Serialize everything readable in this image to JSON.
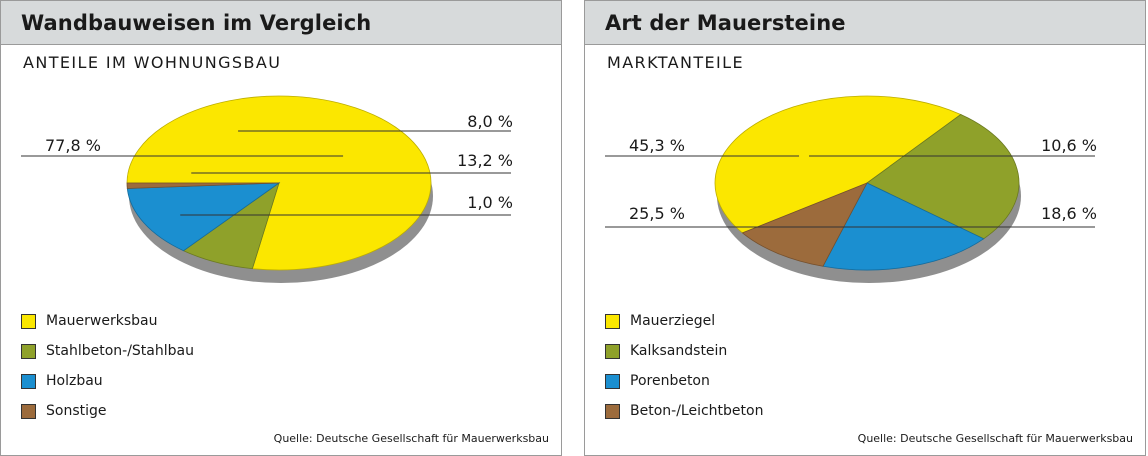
{
  "chart_data": [
    {
      "type": "pie",
      "title": "Wandbauweisen im Vergleich",
      "subtitle": "ANTEILE IM WOHNUNGSBAU",
      "slices": [
        {
          "label": "Mauerwerksbau",
          "value": 77.8,
          "value_label": "77,8 %",
          "color": "#fbe700"
        },
        {
          "label": "Stahlbeton-/Stahlbau",
          "value": 8.0,
          "value_label": "8,0 %",
          "color": "#8fa12a"
        },
        {
          "label": "Holzbau",
          "value": 13.2,
          "value_label": "13,2 %",
          "color": "#1b8fd0"
        },
        {
          "label": "Sonstige",
          "value": 1.0,
          "value_label": "1,0 %",
          "color": "#9c6b3c"
        }
      ],
      "source": "Quelle: Deutsche Gesellschaft für Mauerwerksbau"
    },
    {
      "type": "pie",
      "title": "Art der Mauersteine",
      "subtitle": "MARKTANTEILE",
      "slices": [
        {
          "label": "Mauerziegel",
          "value": 45.3,
          "value_label": "45,3 %",
          "color": "#fbe700"
        },
        {
          "label": "Kalksandstein",
          "value": 25.5,
          "value_label": "25,5 %",
          "color": "#8fa12a"
        },
        {
          "label": "Porenbeton",
          "value": 18.6,
          "value_label": "18,6 %",
          "color": "#1b8fd0"
        },
        {
          "label": "Beton-/Leichtbeton",
          "value": 10.6,
          "value_label": "10,6 %",
          "color": "#9c6b3c"
        }
      ],
      "source": "Quelle: Deutsche Gesellschaft für Mauerwerksbau"
    }
  ]
}
